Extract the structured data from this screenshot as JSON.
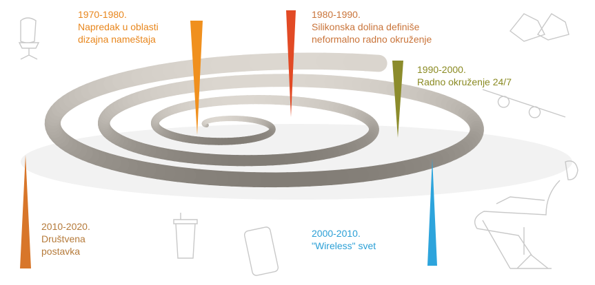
{
  "milestones": [
    {
      "period": "1970-1980.",
      "lines": [
        "Napredak u oblasti",
        "dizajna nameštaja"
      ]
    },
    {
      "period": "1980-1990.",
      "lines": [
        "Silikonska dolina definiše",
        "neformalno radno okruženje"
      ]
    },
    {
      "period": "1990-2000.",
      "lines": [
        "Radno okruženje 24/7"
      ]
    },
    {
      "period": "2000-2010.",
      "lines": [
        "\"Wireless\" svet"
      ]
    },
    {
      "period": "2010-2020.",
      "lines": [
        "Društvena",
        "postavka"
      ]
    }
  ]
}
